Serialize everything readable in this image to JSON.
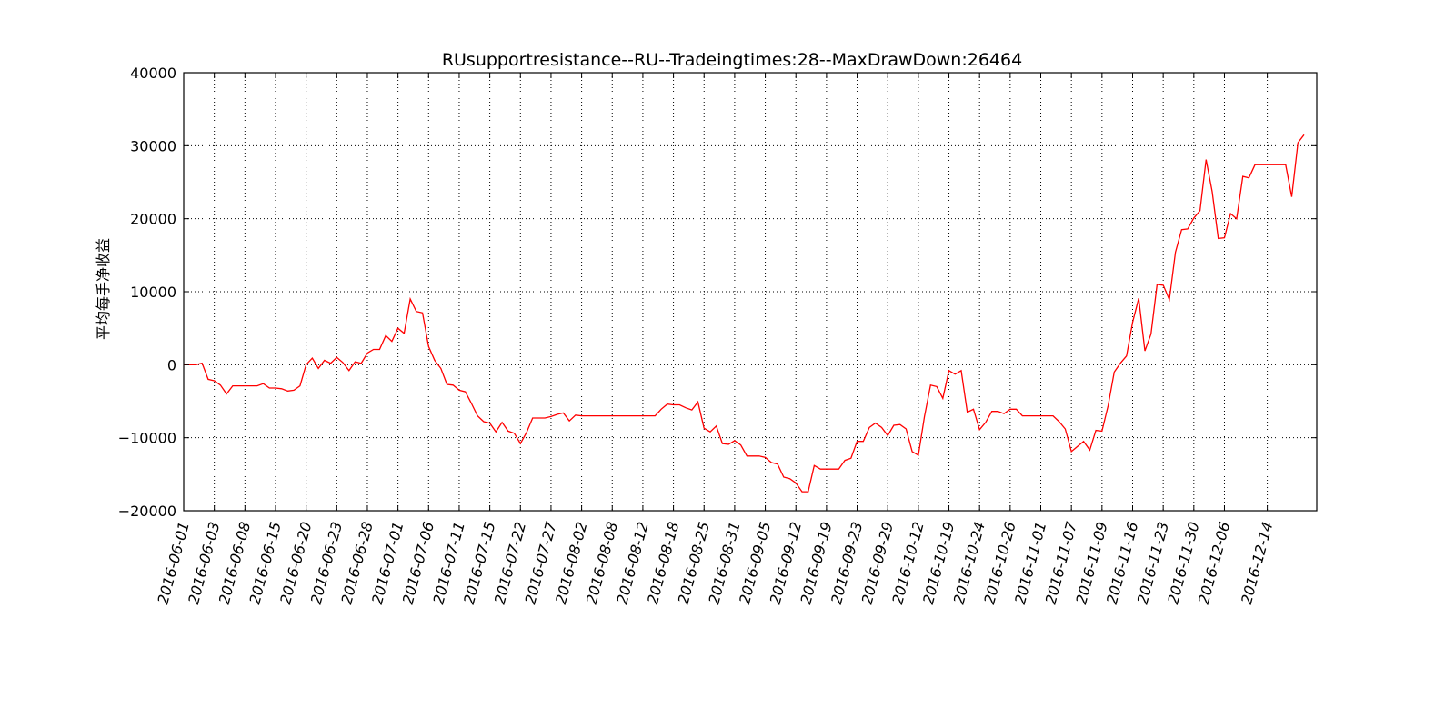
{
  "chart_data": {
    "type": "line",
    "title": "RUsupportresistance--RU--Tradeingtimes:28--MaxDrawDown:26464",
    "xlabel": "",
    "ylabel": "平均每手净收益",
    "ylim": [
      -20000,
      40000
    ],
    "yticks": [
      -20000,
      -10000,
      0,
      10000,
      20000,
      30000,
      40000
    ],
    "ytick_labels": [
      "−20000",
      "−10000",
      "0",
      "10000",
      "20000",
      "30000",
      "40000"
    ],
    "xtick_labels": [
      "2016-06-01",
      "2016-06-03",
      "2016-06-08",
      "2016-06-15",
      "2016-06-20",
      "2016-06-23",
      "2016-06-28",
      "2016-07-01",
      "2016-07-06",
      "2016-07-11",
      "2016-07-15",
      "2016-07-22",
      "2016-07-27",
      "2016-08-02",
      "2016-08-08",
      "2016-08-12",
      "2016-08-18",
      "2016-08-25",
      "2016-08-31",
      "2016-09-05",
      "2016-09-12",
      "2016-09-19",
      "2016-09-23",
      "2016-09-29",
      "2016-10-12",
      "2016-10-19",
      "2016-10-24",
      "2016-10-26",
      "2016-11-01",
      "2016-11-07",
      "2016-11-09",
      "2016-11-16",
      "2016-11-23",
      "2016-11-30",
      "2016-12-06",
      "2016-12-14"
    ],
    "grid": true,
    "line_color": "#ff0000",
    "series": [
      {
        "values": [
          0,
          0,
          0,
          200,
          -2000,
          -2200,
          -2800,
          -4000,
          -2900,
          -2900,
          -2900,
          -2900,
          -2900,
          -2600,
          -3200,
          -3200,
          -3300,
          -3600,
          -3500,
          -2900,
          0,
          900,
          -500,
          600,
          200,
          1000,
          300,
          -800,
          400,
          200,
          1600,
          2100,
          2100,
          4000,
          3200,
          5000,
          4300,
          9000,
          7300,
          7100,
          2500,
          600,
          -500,
          -2700,
          -2800,
          -3500,
          -3700,
          -5300,
          -7000,
          -7800,
          -8000,
          -9200,
          -7900,
          -9100,
          -9400,
          -10800,
          -9300,
          -7300,
          -7300,
          -7300,
          -7100,
          -6800,
          -6600,
          -7700,
          -6900,
          -7000,
          -7000,
          -7000,
          -7000,
          -7000,
          -7000,
          -7000,
          -7000,
          -7000,
          -7000,
          -7000,
          -7000,
          -7000,
          -6100,
          -5400,
          -5500,
          -5500,
          -5900,
          -6200,
          -5100,
          -8700,
          -9200,
          -8400,
          -10800,
          -10900,
          -10400,
          -11000,
          -12500,
          -12500,
          -12500,
          -12700,
          -13400,
          -13600,
          -15400,
          -15600,
          -16200,
          -17400,
          -17400,
          -13800,
          -14300,
          -14300,
          -14300,
          -14300,
          -13100,
          -12800,
          -10500,
          -10500,
          -8600,
          -8000,
          -8600,
          -9700,
          -8300,
          -8200,
          -8800,
          -11900,
          -12400,
          -7100,
          -2800,
          -3000,
          -4600,
          -800,
          -1300,
          -800,
          -6500,
          -6100,
          -8900,
          -7900,
          -6400,
          -6400,
          -6700,
          -6100,
          -6100,
          -7000,
          -7000,
          -7000,
          -7000,
          -7000,
          -7000,
          -7800,
          -8800,
          -11900,
          -11200,
          -10500,
          -11700,
          -9000,
          -9100,
          -5600,
          -1000,
          200,
          1200,
          5800,
          9100,
          1900,
          4200,
          11000,
          10900,
          8900,
          15400,
          18500,
          18600,
          20100,
          21100,
          28100,
          23700,
          17300,
          17400,
          20700,
          20000,
          25800,
          25600,
          27400,
          27400,
          27400,
          27400,
          27400,
          27400,
          23000,
          30400,
          31500
        ]
      }
    ]
  }
}
